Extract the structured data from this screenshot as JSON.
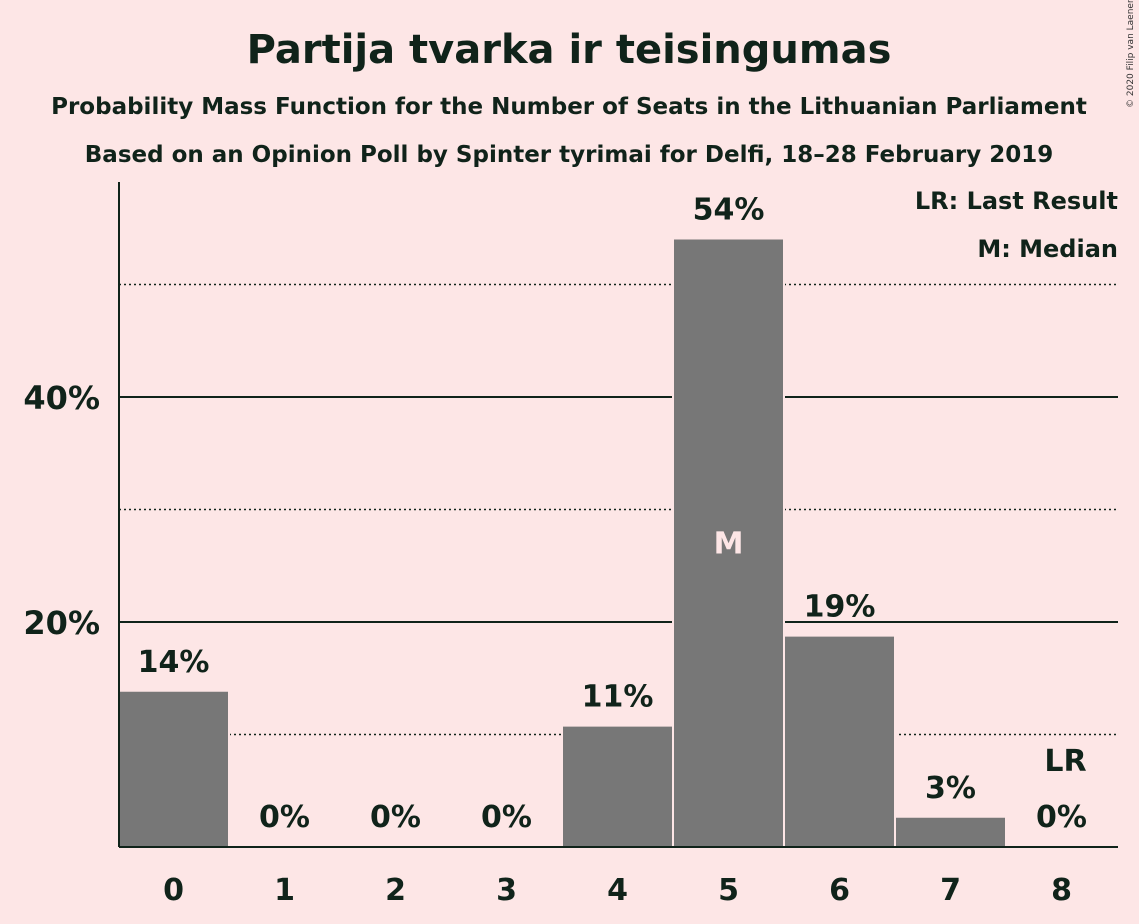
{
  "chart_data": {
    "type": "bar",
    "title": "Partija tvarka ir teisingumas",
    "subtitle": "Probability Mass Function for the Number of Seats in the Lithuanian Parliament",
    "subtitle2": "Based on an Opinion Poll by Spinter tyrimai for Delfi, 18–28 February 2019",
    "categories": [
      "0",
      "1",
      "2",
      "3",
      "4",
      "5",
      "6",
      "7",
      "8"
    ],
    "values": [
      14,
      0,
      0,
      0,
      11,
      54,
      19,
      3,
      0
    ],
    "value_labels": [
      "14%",
      "0%",
      "0%",
      "0%",
      "11%",
      "54%",
      "19%",
      "3%",
      "0%"
    ],
    "bar_values_precise": [
      13.8,
      0,
      0,
      0,
      10.7,
      54.0,
      18.7,
      2.6,
      0
    ],
    "ylim": [
      0,
      60
    ],
    "yticks": [
      20,
      40
    ],
    "ytick_labels": [
      "20%",
      "40%"
    ],
    "dotted_gridlines": [
      10,
      30,
      50
    ],
    "median_category": "5",
    "median_marker": "M",
    "last_result_category": "8",
    "last_result_marker": "LR",
    "legend": {
      "last_result": "LR: Last Result",
      "median": "M: Median",
      "placement": "top-right"
    },
    "colors": {
      "background": "#fde6e6",
      "bar": "#777777",
      "text": "#10231a"
    },
    "copyright": "© 2020 Filip van Laenen"
  }
}
